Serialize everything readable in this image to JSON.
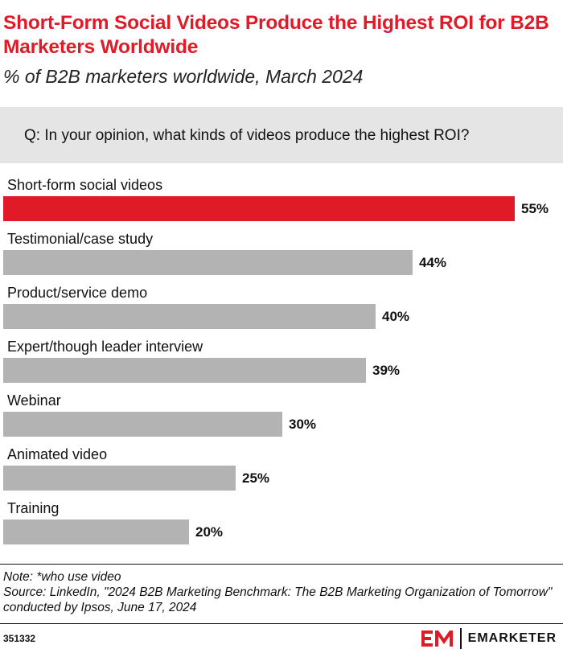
{
  "title": "Short-Form Social Videos Produce the Highest ROI for B2B Marketers Worldwide",
  "subtitle": "% of B2B marketers worldwide, March 2024",
  "question": "Q: In your opinion, what kinds of videos produce the highest ROI?",
  "colors": {
    "highlight": "#e11a27",
    "bar": "#b3b3b3",
    "question_bg": "#e5e5e5"
  },
  "chart_data": {
    "type": "bar",
    "orientation": "horizontal",
    "categories": [
      "Short-form social videos",
      "Testimonial/case study",
      "Product/service demo",
      "Expert/though leader interview",
      "Webinar",
      "Animated video",
      "Training"
    ],
    "values": [
      55,
      44,
      40,
      39,
      30,
      25,
      20
    ],
    "value_labels": [
      "55%",
      "44%",
      "40%",
      "39%",
      "30%",
      "25%",
      "20%"
    ],
    "highlight_index": 0,
    "xlim": [
      0,
      55
    ]
  },
  "note": "Note: *who use video",
  "source": "Source: LinkedIn, \"2024 B2B Marketing Benchmark: The B2B Marketing Organization of Tomorrow\" conducted by Ipsos,  June 17, 2024",
  "chart_id": "351332",
  "brand": "EMARKETER",
  "logo_icon": "em-logo-icon"
}
